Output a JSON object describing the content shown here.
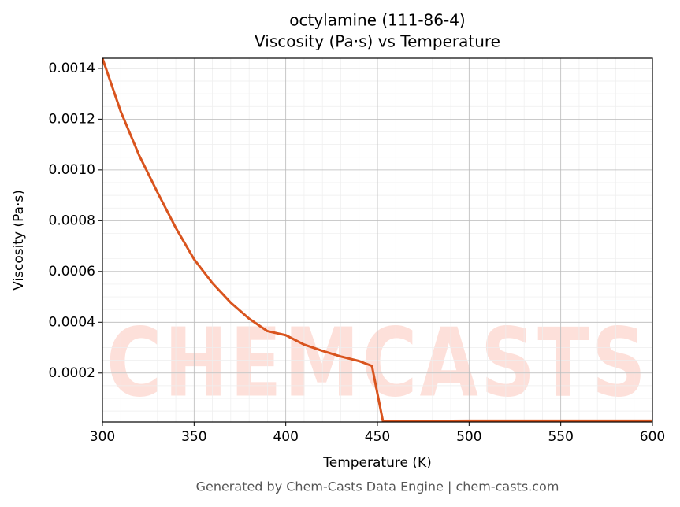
{
  "chart_data": {
    "type": "line",
    "title": "octylamine (111-86-4)",
    "subtitle": "Viscosity (Pa·s) vs Temperature",
    "x_label": "Temperature (K)",
    "y_label": "Viscosity (Pa·s)",
    "watermark": "CHEMCASTS",
    "footer": "Generated by Chem-Casts Data Engine | chem-casts.com",
    "xlim": [
      300,
      600
    ],
    "ylim": [
      7e-06,
      0.00144
    ],
    "xticks": [
      300,
      350,
      400,
      450,
      500,
      550,
      600
    ],
    "yticks": [
      0.0002,
      0.0004,
      0.0006,
      0.0008,
      {
        "value": 0.001,
        "label": "0.0010"
      },
      0.0012,
      0.0014
    ],
    "grid": true,
    "series": [
      {
        "name": "Viscosity",
        "color": "#d9541e",
        "x": [
          300,
          310,
          320,
          330,
          340,
          350,
          360,
          370,
          380,
          390,
          400,
          410,
          420,
          430,
          440,
          447,
          453,
          500,
          550,
          600
        ],
        "values": [
          0.00144,
          0.00123,
          0.001058,
          0.000912,
          0.000772,
          0.000648,
          0.000554,
          0.000477,
          0.000414,
          0.000365,
          0.000349,
          0.000312,
          0.000287,
          0.000265,
          0.000247,
          0.000228,
          1e-05,
          1.2e-05,
          1.2e-05,
          1.2e-05
        ]
      }
    ]
  }
}
